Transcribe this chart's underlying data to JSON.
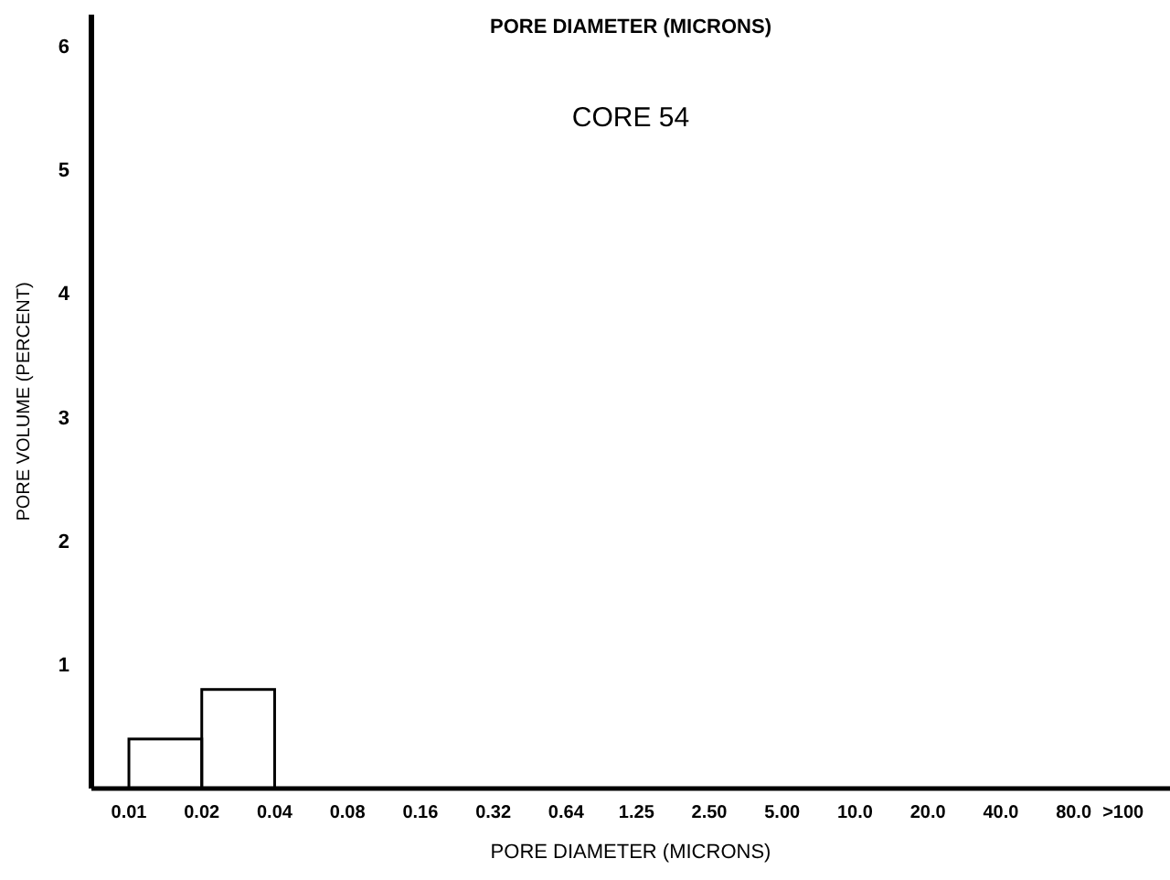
{
  "chart_data": {
    "type": "histogram",
    "title": "PORE DIAMETER (MICRONS)",
    "subtitle": "CORE 54",
    "xlabel": "PORE DIAMETER (MICRONS)",
    "ylabel": "PORE VOLUME (PERCENT)",
    "bins": [
      0.01,
      0.02,
      0.04
    ],
    "values": [
      0.4,
      0.8
    ],
    "color": "#000000",
    "log": "x",
    "xlim": [
      0.007,
      200
    ],
    "xticks": [
      {
        "value": 0.01,
        "label": "0.01"
      },
      {
        "value": 0.02,
        "label": "0.02"
      },
      {
        "value": 0.04,
        "label": "0.04"
      },
      {
        "value": 0.08,
        "label": "0.08"
      },
      {
        "value": 0.16,
        "label": "0.16"
      },
      {
        "value": 0.32,
        "label": "0.32"
      },
      {
        "value": 0.64,
        "label": "0.64"
      },
      {
        "value": 1.25,
        "label": "1.25"
      },
      {
        "value": 2.5,
        "label": "2.50"
      },
      {
        "value": 5,
        "label": "5.00"
      },
      {
        "value": 10,
        "label": "10.0"
      },
      {
        "value": 20,
        "label": "20.0"
      },
      {
        "value": 40,
        "label": "40.0"
      },
      {
        "value": 80,
        "label": "80.0"
      },
      {
        "value": 128,
        "label": ">100"
      }
    ],
    "ylim": [
      0,
      6.25
    ],
    "yticks": [
      1,
      2,
      3,
      4,
      5,
      6
    ],
    "grid": false
  }
}
